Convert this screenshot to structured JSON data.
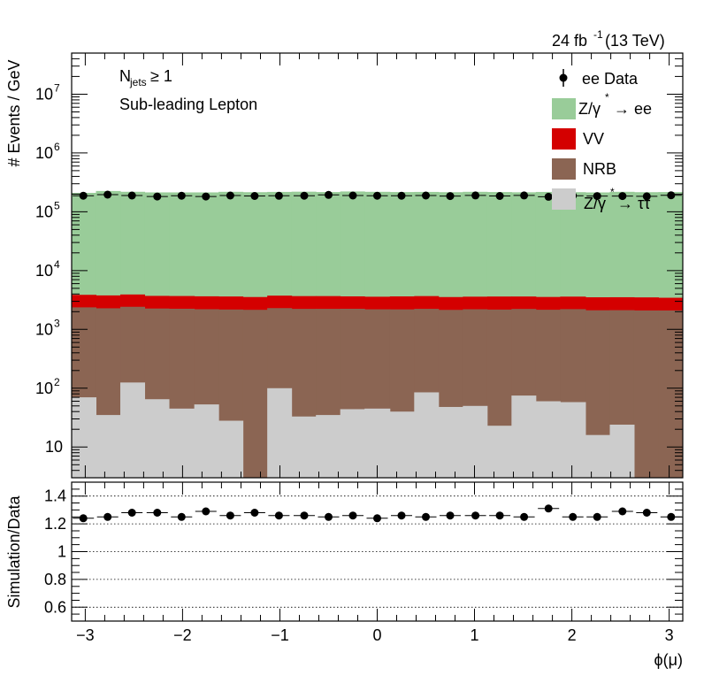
{
  "chart_data": [
    {
      "type": "area",
      "x_edges": [
        -3.14,
        -2.89,
        -2.64,
        -2.39,
        -2.14,
        -1.88,
        -1.63,
        -1.38,
        -1.13,
        -0.88,
        -0.63,
        -0.38,
        -0.13,
        0.13,
        0.38,
        0.63,
        0.88,
        1.13,
        1.38,
        1.63,
        1.88,
        2.14,
        2.39,
        2.64,
        2.89,
        3.14
      ],
      "series": [
        {
          "name": "Z/γ* → ττ",
          "color": "#cccccc",
          "values": [
            70,
            35,
            125,
            65,
            45,
            53,
            28,
            2,
            100,
            33,
            35,
            44,
            45,
            40,
            85,
            48,
            50,
            23,
            75,
            60,
            58,
            16,
            24,
            2,
            2
          ]
        },
        {
          "name": "NRB",
          "color": "#8b6553",
          "values": [
            2300,
            2250,
            2300,
            2200,
            2200,
            2150,
            2150,
            2150,
            2200,
            2200,
            2200,
            2200,
            2150,
            2150,
            2150,
            2100,
            2150,
            2150,
            2150,
            2100,
            2150,
            2100,
            2100,
            2100,
            2100
          ]
        },
        {
          "name": "VV",
          "color": "#d40000",
          "values": [
            1500,
            1500,
            1500,
            1450,
            1450,
            1450,
            1450,
            1400,
            1450,
            1450,
            1450,
            1400,
            1400,
            1450,
            1450,
            1400,
            1400,
            1450,
            1400,
            1400,
            1400,
            1400,
            1400,
            1400,
            1350
          ]
        },
        {
          "name": "Z/γ* → ee",
          "color": "#99cc99",
          "values": [
            206000,
            222000,
            215000,
            210000,
            210000,
            210000,
            215000,
            212000,
            214000,
            216000,
            213000,
            218000,
            215000,
            213000,
            214000,
            212000,
            215000,
            213000,
            211000,
            214000,
            212000,
            210000,
            215000,
            212000,
            213000
          ]
        }
      ],
      "data_points": {
        "name": "ee Data",
        "x": [
          -3.02,
          -2.77,
          -2.52,
          -2.26,
          -2.01,
          -1.76,
          -1.51,
          -1.26,
          -1.01,
          -0.75,
          -0.5,
          -0.25,
          0.0,
          0.25,
          0.5,
          0.75,
          1.01,
          1.26,
          1.51,
          1.76,
          2.01,
          2.26,
          2.52,
          2.77,
          3.02
        ],
        "y": [
          188000,
          196000,
          189000,
          182000,
          188000,
          182000,
          189000,
          186000,
          187000,
          188000,
          194000,
          189000,
          188000,
          188000,
          189000,
          185000,
          190000,
          186000,
          190000,
          180000,
          188000,
          185000,
          185000,
          183000,
          191000
        ]
      },
      "ylim": [
        3,
        50000000
      ],
      "log_y": true,
      "y_ticks": [
        "10",
        "10^2",
        "10^3",
        "10^4",
        "10^5",
        "10^6",
        "10^7"
      ],
      "ylabel": "# Events / GeV",
      "xlim": [
        -3.14,
        3.14
      ],
      "legend": [
        "ee Data",
        "Z/γ* → ee",
        "VV",
        "NRB",
        "Z/γ* → ττ"
      ],
      "legend_position": "top-right",
      "annotations": [
        "N_jets ≥ 1",
        "Sub-leading Lepton",
        "24 fb^-1 (13 TeV)"
      ]
    },
    {
      "type": "scatter",
      "x": [
        -3.02,
        -2.77,
        -2.52,
        -2.26,
        -2.01,
        -1.76,
        -1.51,
        -1.26,
        -1.01,
        -0.75,
        -0.5,
        -0.25,
        0.0,
        0.25,
        0.5,
        0.75,
        1.01,
        1.26,
        1.51,
        1.76,
        2.01,
        2.26,
        2.52,
        2.77,
        3.02
      ],
      "y": [
        1.24,
        1.25,
        1.28,
        1.28,
        1.25,
        1.29,
        1.26,
        1.28,
        1.26,
        1.26,
        1.25,
        1.26,
        1.24,
        1.26,
        1.25,
        1.26,
        1.26,
        1.26,
        1.25,
        1.31,
        1.25,
        1.25,
        1.29,
        1.28,
        1.25
      ],
      "ylim": [
        0.5,
        1.5
      ],
      "yticks": [
        "0.6",
        "0.8",
        "1",
        "1.2",
        "1.4"
      ],
      "xlim": [
        -3.14,
        3.14
      ],
      "xticks": [
        "−3",
        "−2",
        "−1",
        "0",
        "1",
        "2",
        "3"
      ],
      "ylabel": "Simulation/Data",
      "xlabel": "ϕ(μ)",
      "gridlines_y": true
    }
  ]
}
